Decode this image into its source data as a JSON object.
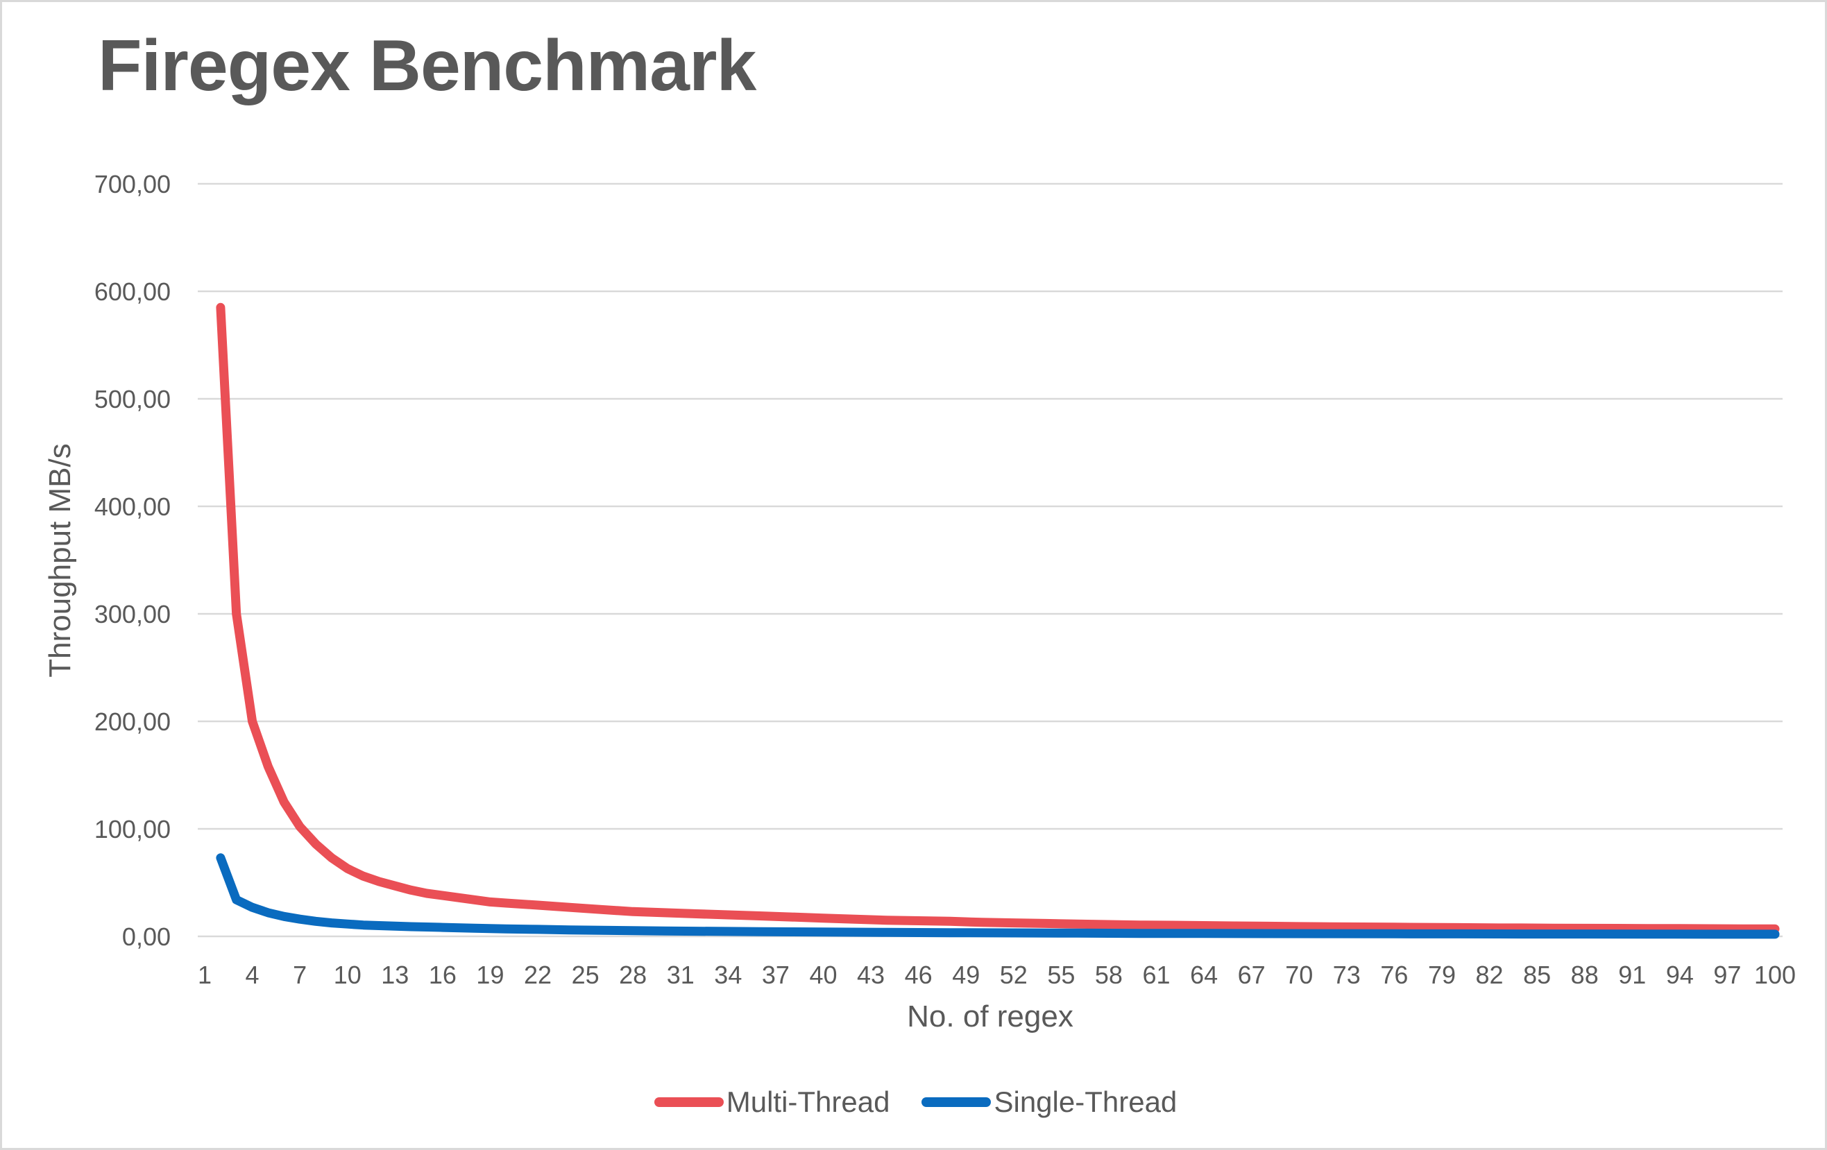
{
  "chart_data": {
    "type": "line",
    "title": "Firegex Benchmark",
    "xlabel": "No. of regex",
    "ylabel": "Throughput MB/s",
    "x_range": [
      1,
      100
    ],
    "ylim": [
      0,
      700
    ],
    "grid": "horizontal-only",
    "legend_position": "bottom-center",
    "decimal_separator": ",",
    "yticks": [
      {
        "v": 0,
        "label": "0,00"
      },
      {
        "v": 100,
        "label": "100,00"
      },
      {
        "v": 200,
        "label": "200,00"
      },
      {
        "v": 300,
        "label": "300,00"
      },
      {
        "v": 400,
        "label": "400,00"
      },
      {
        "v": 500,
        "label": "500,00"
      },
      {
        "v": 600,
        "label": "600,00"
      },
      {
        "v": 700,
        "label": "700,00"
      }
    ],
    "xticks": [
      {
        "v": 1,
        "label": "1"
      },
      {
        "v": 4,
        "label": "4"
      },
      {
        "v": 7,
        "label": "7"
      },
      {
        "v": 10,
        "label": "10"
      },
      {
        "v": 13,
        "label": "13"
      },
      {
        "v": 16,
        "label": "16"
      },
      {
        "v": 19,
        "label": "19"
      },
      {
        "v": 22,
        "label": "22"
      },
      {
        "v": 25,
        "label": "25"
      },
      {
        "v": 28,
        "label": "28"
      },
      {
        "v": 31,
        "label": "31"
      },
      {
        "v": 34,
        "label": "34"
      },
      {
        "v": 37,
        "label": "37"
      },
      {
        "v": 40,
        "label": "40"
      },
      {
        "v": 43,
        "label": "43"
      },
      {
        "v": 46,
        "label": "46"
      },
      {
        "v": 49,
        "label": "49"
      },
      {
        "v": 52,
        "label": "52"
      },
      {
        "v": 55,
        "label": "55"
      },
      {
        "v": 58,
        "label": "58"
      },
      {
        "v": 61,
        "label": "61"
      },
      {
        "v": 64,
        "label": "64"
      },
      {
        "v": 67,
        "label": "67"
      },
      {
        "v": 70,
        "label": "70"
      },
      {
        "v": 73,
        "label": "73"
      },
      {
        "v": 76,
        "label": "76"
      },
      {
        "v": 79,
        "label": "79"
      },
      {
        "v": 82,
        "label": "82"
      },
      {
        "v": 85,
        "label": "85"
      },
      {
        "v": 88,
        "label": "88"
      },
      {
        "v": 91,
        "label": "91"
      },
      {
        "v": 94,
        "label": "94"
      },
      {
        "v": 97,
        "label": "97"
      },
      {
        "v": 100,
        "label": "100"
      }
    ],
    "series": [
      {
        "name": "Multi-Thread",
        "color": "#EA4F55",
        "points": [
          [
            2,
            585
          ],
          [
            3,
            300
          ],
          [
            4,
            200
          ],
          [
            5,
            158
          ],
          [
            6,
            125
          ],
          [
            7,
            102
          ],
          [
            8,
            86
          ],
          [
            9,
            73
          ],
          [
            10,
            63
          ],
          [
            11,
            56
          ],
          [
            12,
            51
          ],
          [
            13,
            47
          ],
          [
            14,
            43
          ],
          [
            15,
            40
          ],
          [
            16,
            38
          ],
          [
            17,
            36
          ],
          [
            18,
            34
          ],
          [
            19,
            32
          ],
          [
            20,
            31
          ],
          [
            22,
            29
          ],
          [
            24,
            27
          ],
          [
            26,
            25
          ],
          [
            28,
            23
          ],
          [
            30,
            22
          ],
          [
            32,
            21
          ],
          [
            34,
            20
          ],
          [
            36,
            19
          ],
          [
            38,
            18
          ],
          [
            40,
            17
          ],
          [
            42,
            16
          ],
          [
            44,
            15
          ],
          [
            46,
            14.5
          ],
          [
            48,
            14
          ],
          [
            50,
            13
          ],
          [
            52,
            12.5
          ],
          [
            54,
            12
          ],
          [
            56,
            11.5
          ],
          [
            58,
            11
          ],
          [
            60,
            10.5
          ],
          [
            62,
            10.3
          ],
          [
            64,
            10
          ],
          [
            66,
            9.7
          ],
          [
            68,
            9.4
          ],
          [
            70,
            9.1
          ],
          [
            72,
            8.9
          ],
          [
            74,
            8.7
          ],
          [
            76,
            8.5
          ],
          [
            78,
            8.3
          ],
          [
            80,
            8.1
          ],
          [
            82,
            7.9
          ],
          [
            84,
            7.8
          ],
          [
            86,
            7.6
          ],
          [
            88,
            7.5
          ],
          [
            90,
            7.4
          ],
          [
            92,
            7.3
          ],
          [
            94,
            7.2
          ],
          [
            96,
            7.1
          ],
          [
            98,
            7
          ],
          [
            100,
            7
          ]
        ]
      },
      {
        "name": "Single-Thread",
        "color": "#0A6BBF",
        "points": [
          [
            2,
            73
          ],
          [
            3,
            34
          ],
          [
            4,
            27
          ],
          [
            5,
            22
          ],
          [
            6,
            18.5
          ],
          [
            7,
            16
          ],
          [
            8,
            14
          ],
          [
            9,
            12.5
          ],
          [
            10,
            11.5
          ],
          [
            11,
            10.5
          ],
          [
            12,
            10
          ],
          [
            13,
            9.5
          ],
          [
            14,
            9
          ],
          [
            15,
            8.7
          ],
          [
            16,
            8.3
          ],
          [
            18,
            7.6
          ],
          [
            20,
            7
          ],
          [
            22,
            6.5
          ],
          [
            24,
            6
          ],
          [
            26,
            5.6
          ],
          [
            28,
            5.3
          ],
          [
            30,
            5
          ],
          [
            32,
            4.8
          ],
          [
            34,
            4.6
          ],
          [
            36,
            4.4
          ],
          [
            38,
            4.2
          ],
          [
            40,
            4
          ],
          [
            44,
            3.7
          ],
          [
            48,
            3.4
          ],
          [
            52,
            3.2
          ],
          [
            56,
            3
          ],
          [
            60,
            2.8
          ],
          [
            64,
            2.7
          ],
          [
            68,
            2.6
          ],
          [
            72,
            2.5
          ],
          [
            76,
            2.4
          ],
          [
            80,
            2.3
          ],
          [
            84,
            2.2
          ],
          [
            88,
            2.2
          ],
          [
            92,
            2.1
          ],
          [
            96,
            2
          ],
          [
            100,
            2
          ]
        ]
      }
    ]
  },
  "colors": {
    "title_text": "#595959",
    "axis_text": "#595959",
    "gridline": "#D9D9D9",
    "page_border": "#D9D9D9",
    "background": "#FFFFFF",
    "multi_thread": "#EA4F55",
    "single_thread": "#0A6BBF"
  }
}
